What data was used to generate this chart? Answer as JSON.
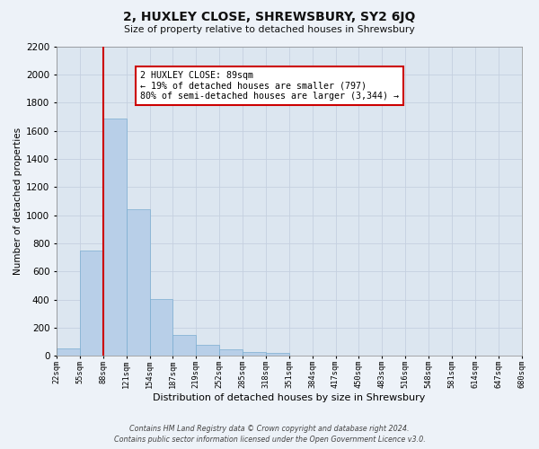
{
  "title": "2, HUXLEY CLOSE, SHREWSBURY, SY2 6JQ",
  "subtitle": "Size of property relative to detached houses in Shrewsbury",
  "xlabel": "Distribution of detached houses by size in Shrewsbury",
  "ylabel": "Number of detached properties",
  "bar_values": [
    50,
    747,
    1686,
    1040,
    405,
    148,
    80,
    45,
    30,
    20,
    0,
    0,
    0,
    0,
    0,
    0,
    0,
    0,
    0,
    0
  ],
  "bin_labels": [
    "22sqm",
    "55sqm",
    "88sqm",
    "121sqm",
    "154sqm",
    "187sqm",
    "219sqm",
    "252sqm",
    "285sqm",
    "318sqm",
    "351sqm",
    "384sqm",
    "417sqm",
    "450sqm",
    "483sqm",
    "516sqm",
    "548sqm",
    "581sqm",
    "614sqm",
    "647sqm",
    "680sqm"
  ],
  "bar_color": "#b8cfe8",
  "bar_edge_color": "#7aadd0",
  "grid_color": "#c5d0e0",
  "bg_color": "#dce6f0",
  "fig_bg_color": "#edf2f8",
  "vline_x": 2,
  "vline_color": "#cc0000",
  "annotation_title": "2 HUXLEY CLOSE: 89sqm",
  "annotation_line1": "← 19% of detached houses are smaller (797)",
  "annotation_line2": "80% of semi-detached houses are larger (3,344) →",
  "annotation_box_color": "#ffffff",
  "annotation_box_edge": "#cc0000",
  "ylim": [
    0,
    2200
  ],
  "yticks": [
    0,
    200,
    400,
    600,
    800,
    1000,
    1200,
    1400,
    1600,
    1800,
    2000,
    2200
  ],
  "footer_line1": "Contains HM Land Registry data © Crown copyright and database right 2024.",
  "footer_line2": "Contains public sector information licensed under the Open Government Licence v3.0.",
  "num_bins": 20
}
